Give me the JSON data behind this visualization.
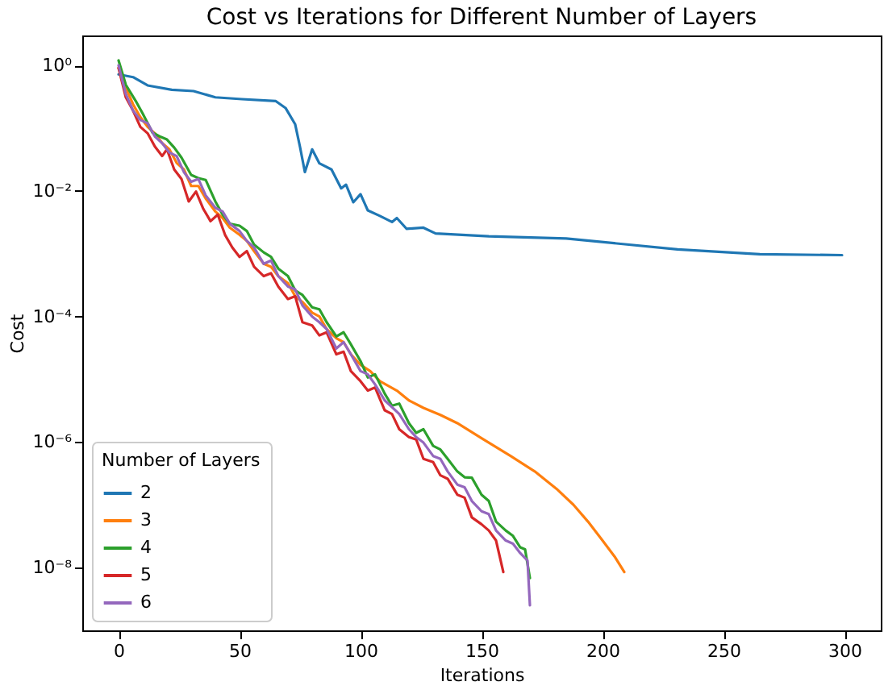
{
  "chart_data": {
    "type": "line",
    "title": "Cost vs Iterations for Different Number of Layers",
    "xlabel": "Iterations",
    "ylabel": "Cost",
    "legend_title": "Number of Layers",
    "legend": "bottom left",
    "grid": false,
    "log": "y",
    "line_style": "solid",
    "marker": "none",
    "xlim": [
      -15,
      315
    ],
    "xticks": [
      0,
      50,
      100,
      150,
      200,
      250,
      300
    ],
    "ylim": [
      1e-09,
      3
    ],
    "yticks": [
      {
        "value": 1,
        "label": "10⁰"
      },
      {
        "value": 0.01,
        "label": "10⁻²"
      },
      {
        "value": 0.0001,
        "label": "10⁻⁴"
      },
      {
        "value": 1e-06,
        "label": "10⁻⁶"
      },
      {
        "value": 1e-08,
        "label": "10⁻⁸"
      }
    ],
    "series": [
      {
        "name": "2",
        "color": "#1f77b4",
        "x": [
          0,
          6,
          12,
          22,
          31,
          40,
          51,
          65,
          69,
          73,
          75,
          77,
          80,
          83,
          88,
          92,
          94,
          97,
          100,
          103,
          108,
          113,
          115,
          119,
          126,
          131,
          153,
          185,
          231,
          265,
          299
        ],
        "values": [
          0.72,
          0.65,
          0.48,
          0.41,
          0.39,
          0.31,
          0.29,
          0.27,
          0.21,
          0.115,
          0.05,
          0.02,
          0.046,
          0.0275,
          0.022,
          0.011,
          0.0126,
          0.0066,
          0.0089,
          0.0049,
          0.004,
          0.0032,
          0.0037,
          0.0025,
          0.0026,
          0.0021,
          0.0019,
          0.00175,
          0.00117,
          0.00098,
          0.00095
        ]
      },
      {
        "name": "3",
        "color": "#ff7f0e",
        "x": [
          0,
          3,
          6,
          9,
          12,
          15,
          18,
          21,
          24,
          27,
          30,
          33,
          36,
          40,
          43,
          46,
          50,
          53,
          56,
          60,
          63,
          66,
          70,
          73,
          76,
          80,
          83,
          86,
          90,
          93,
          96,
          100,
          104,
          108,
          115,
          120,
          126,
          133,
          140,
          150,
          162,
          172,
          181,
          188,
          194,
          200,
          205,
          209
        ],
        "values": [
          0.91,
          0.44,
          0.24,
          0.15,
          0.105,
          0.083,
          0.058,
          0.046,
          0.028,
          0.022,
          0.012,
          0.012,
          0.0076,
          0.0047,
          0.0037,
          0.0026,
          0.002,
          0.0016,
          0.0011,
          0.00069,
          0.00062,
          0.00044,
          0.00034,
          0.00021,
          0.00017,
          0.000115,
          0.0001,
          6.3e-05,
          4.5e-05,
          3.9e-05,
          2.5e-05,
          1.7e-05,
          1.35e-05,
          9.3e-06,
          6.6e-06,
          4.6e-06,
          3.5e-06,
          2.7e-06,
          2e-06,
          1.15e-06,
          6e-07,
          3.4e-07,
          1.8e-07,
          1e-07,
          5.4e-08,
          2.7e-08,
          1.5e-08,
          8.5e-09
        ]
      },
      {
        "name": "4",
        "color": "#2ca02c",
        "x": [
          0,
          3,
          7,
          10,
          14,
          17,
          20,
          23,
          26,
          30,
          33,
          36,
          40,
          43,
          46,
          50,
          53,
          56,
          60,
          63,
          66,
          70,
          73,
          76,
          80,
          83,
          86,
          90,
          93,
          96,
          100,
          103,
          106,
          110,
          113,
          116,
          120,
          123,
          126,
          130,
          133,
          136,
          140,
          143,
          146,
          150,
          153,
          156,
          160,
          163,
          166,
          168,
          170
        ],
        "values": [
          1.2,
          0.49,
          0.275,
          0.17,
          0.085,
          0.074,
          0.066,
          0.049,
          0.034,
          0.018,
          0.016,
          0.015,
          0.0068,
          0.0042,
          0.003,
          0.0028,
          0.0023,
          0.0014,
          0.00105,
          0.00089,
          0.00058,
          0.00044,
          0.00026,
          0.00022,
          0.00014,
          0.00013,
          8.1e-05,
          4.8e-05,
          5.6e-05,
          3.6e-05,
          1.95e-05,
          1.07e-05,
          1.2e-05,
          5.9e-06,
          3.8e-06,
          4.1e-06,
          2e-06,
          1.4e-06,
          1.6e-06,
          8.7e-07,
          7.6e-07,
          5.4e-07,
          3.4e-07,
          2.75e-07,
          2.7e-07,
          1.45e-07,
          1.15e-07,
          5.4e-08,
          3.9e-08,
          3.2e-08,
          2.1e-08,
          1.95e-08,
          6.8e-09
        ]
      },
      {
        "name": "5",
        "color": "#d62728",
        "x": [
          0,
          3,
          6,
          9,
          12,
          15,
          18,
          20,
          23,
          26,
          29,
          32,
          35,
          38,
          41,
          44,
          47,
          50,
          53,
          56,
          60,
          63,
          66,
          70,
          73,
          76,
          80,
          83,
          86,
          90,
          93,
          96,
          100,
          103,
          106,
          110,
          113,
          116,
          120,
          123,
          126,
          130,
          133,
          136,
          140,
          143,
          146,
          150,
          153,
          156,
          159
        ],
        "values": [
          0.91,
          0.31,
          0.19,
          0.105,
          0.083,
          0.051,
          0.036,
          0.046,
          0.022,
          0.0155,
          0.0068,
          0.0098,
          0.0052,
          0.0033,
          0.0042,
          0.002,
          0.00126,
          0.00089,
          0.0011,
          0.00062,
          0.00044,
          0.00049,
          0.0003,
          0.00019,
          0.00021,
          8.1e-05,
          7.2e-05,
          5e-05,
          5.6e-05,
          2.5e-05,
          2.75e-05,
          1.35e-05,
          9.3e-06,
          6.6e-06,
          7.4e-06,
          3.2e-06,
          2.8e-06,
          1.6e-06,
          1.2e-06,
          1.1e-06,
          5.4e-07,
          4.8e-07,
          2.95e-07,
          2.6e-07,
          1.45e-07,
          1.3e-07,
          6.3e-08,
          4.9e-08,
          3.9e-08,
          2.7e-08,
          8.5e-09
        ]
      },
      {
        "name": "6",
        "color": "#9467bd",
        "x": [
          0,
          3,
          6,
          9,
          12,
          15,
          18,
          21,
          24,
          27,
          30,
          33,
          36,
          40,
          43,
          46,
          50,
          53,
          56,
          60,
          63,
          66,
          70,
          73,
          76,
          80,
          83,
          86,
          90,
          93,
          96,
          100,
          103,
          106,
          110,
          113,
          116,
          120,
          123,
          126,
          130,
          133,
          136,
          140,
          143,
          146,
          150,
          153,
          156,
          160,
          163,
          166,
          169,
          170
        ],
        "values": [
          1.0,
          0.35,
          0.19,
          0.135,
          0.12,
          0.074,
          0.058,
          0.041,
          0.036,
          0.02,
          0.014,
          0.0155,
          0.0085,
          0.0054,
          0.0047,
          0.003,
          0.0023,
          0.0016,
          0.00126,
          0.00069,
          0.00078,
          0.00044,
          0.0003,
          0.00027,
          0.00015,
          0.0001,
          8.1e-05,
          6.3e-05,
          3.1e-05,
          3.9e-05,
          2.5e-05,
          1.35e-05,
          1.2e-05,
          8.3e-06,
          4.6e-06,
          3.6e-06,
          2.8e-06,
          1.6e-06,
          1.2e-06,
          9.8e-07,
          6e-07,
          5.4e-07,
          3.4e-07,
          2.1e-07,
          1.9e-07,
          1.15e-07,
          7.9e-08,
          7.1e-08,
          3.9e-08,
          2.7e-08,
          2.4e-08,
          1.7e-08,
          1.3e-08,
          2.5e-09
        ]
      }
    ]
  }
}
